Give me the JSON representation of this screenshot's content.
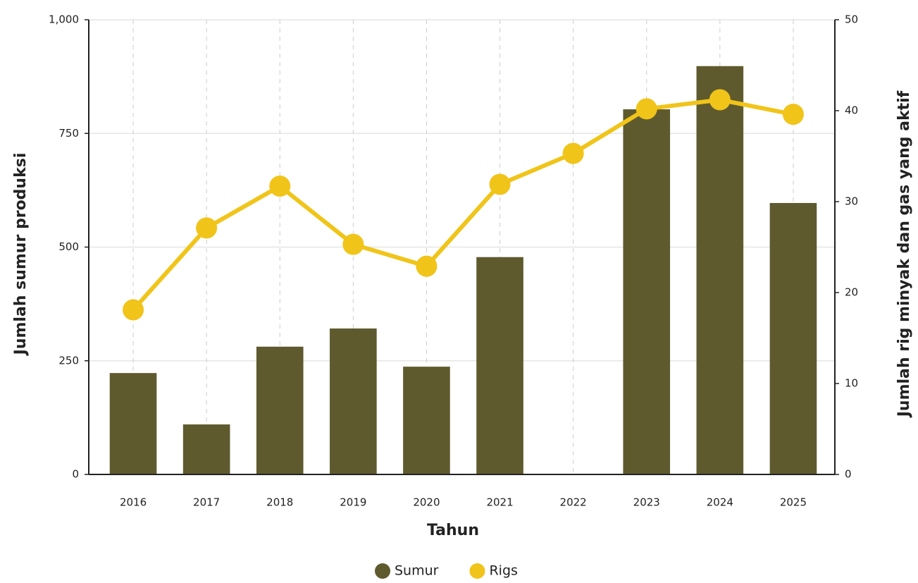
{
  "chart_data": {
    "type": "bar+line",
    "x_label": "Tahun",
    "y_label": "Jumlah sumur produksi",
    "y2_label": "Jumlah rig minyak dan gas yang aktif",
    "categories": [
      "2016",
      "2017",
      "2018",
      "2019",
      "2020",
      "2021",
      "2022",
      "2023",
      "2024",
      "2025"
    ],
    "series": [
      {
        "name": "Sumur",
        "type": "bar",
        "color": "#5f5a2e",
        "values": [
          223,
          110,
          281,
          321,
          237,
          478,
          null,
          803,
          898,
          597
        ]
      },
      {
        "name": "Rigs",
        "type": "line",
        "axis": "y2",
        "color": "#f0c419",
        "values": [
          18.1,
          27.1,
          31.7,
          25.3,
          22.9,
          31.9,
          35.3,
          40.2,
          41.2,
          39.6
        ]
      }
    ],
    "ylim": [
      0,
      1000
    ],
    "yticks": [
      0,
      250,
      500,
      750,
      {
        "value": 1000,
        "label": "1,000"
      }
    ],
    "y2lim": [
      0,
      50
    ],
    "y2ticks": [
      0,
      10,
      20,
      30,
      40,
      50
    ],
    "grid": true,
    "legend": "bottom"
  }
}
